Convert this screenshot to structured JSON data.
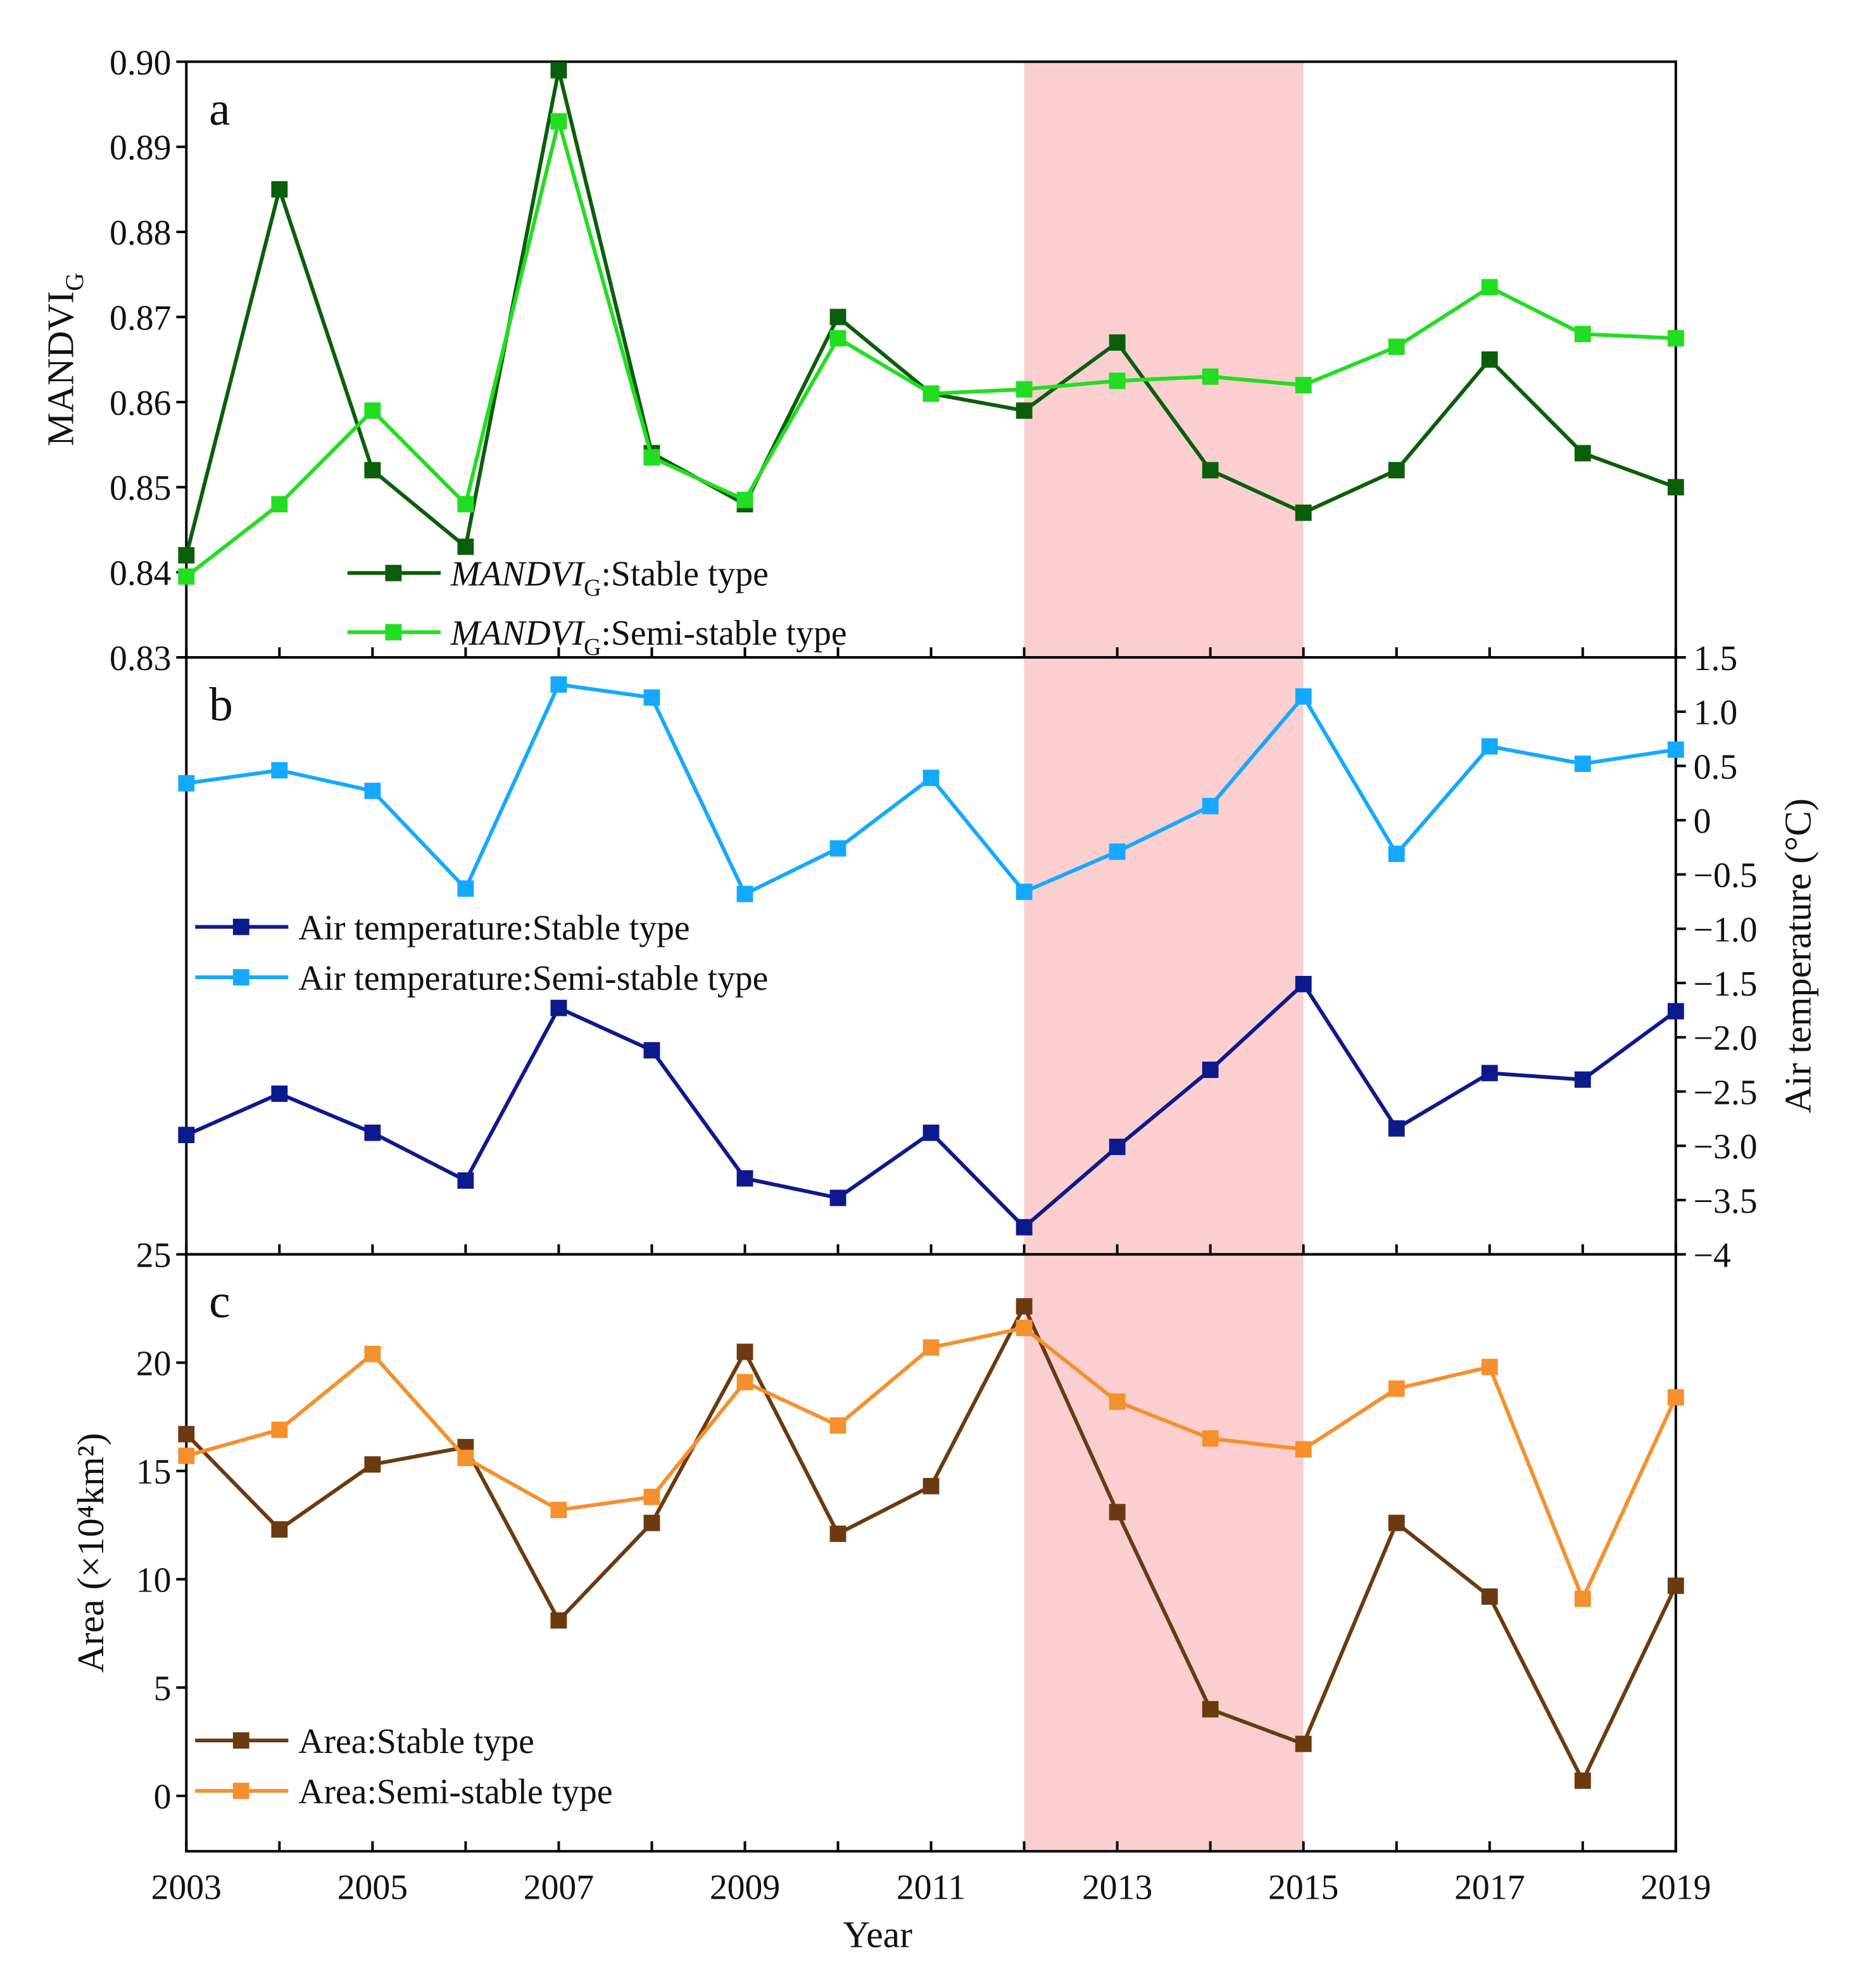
{
  "chart_data": {
    "type": "line",
    "x": [
      2003,
      2004,
      2005,
      2006,
      2007,
      2008,
      2009,
      2010,
      2011,
      2012,
      2013,
      2014,
      2015,
      2016,
      2017,
      2018,
      2019
    ],
    "xlabel": "Year",
    "xticks": [
      "2003",
      "2005",
      "2007",
      "2009",
      "2011",
      "2013",
      "2015",
      "2017",
      "2019"
    ],
    "xlim": [
      2003,
      2019
    ],
    "highlight_range": [
      2012,
      2015
    ],
    "highlight_color": "#fbcfcf",
    "panels": [
      {
        "label": "a",
        "ylabel_main": "MANDVI",
        "ylabel_sub": "G",
        "ylabel_suffix": "",
        "axis_side": "left",
        "ylim": [
          0.83,
          0.9
        ],
        "yticks": [
          "0.83",
          "0.84",
          "0.85",
          "0.86",
          "0.87",
          "0.88",
          "0.89",
          "0.90"
        ],
        "legend_position": "bottom-left",
        "series": [
          {
            "legend_main": "MANDVI",
            "legend_sub": "G",
            "legend_suffix": ":Stable type",
            "italic": true,
            "color": "#0b5e0b",
            "values": [
              0.842,
              0.885,
              0.852,
              0.843,
              0.899,
              0.854,
              0.848,
              0.87,
              0.861,
              0.859,
              0.867,
              0.852,
              0.847,
              0.852,
              0.865,
              0.854,
              0.85
            ]
          },
          {
            "legend_main": "MANDVI",
            "legend_sub": "G",
            "legend_suffix": ":Semi-stable type",
            "italic": true,
            "color": "#22dd22",
            "values": [
              0.8395,
              0.848,
              0.859,
              0.848,
              0.893,
              0.8535,
              0.8485,
              0.8675,
              0.861,
              0.8615,
              0.8625,
              0.863,
              0.862,
              0.8665,
              0.8735,
              0.868,
              0.8675
            ]
          }
        ]
      },
      {
        "label": "b",
        "ylabel_main": "Air temperature (°C)",
        "ylabel_sub": "",
        "ylabel_suffix": "",
        "axis_side": "right",
        "ylim": [
          -4,
          1.5
        ],
        "yticks": [
          "1.5",
          "1.0",
          "0.5",
          "0",
          "−0.5",
          "−1.0",
          "−1.5",
          "−2.0",
          "−2.5",
          "−3.0",
          "−3.5",
          "−4"
        ],
        "legend_position": "center-left",
        "series": [
          {
            "legend_main": "Air temperature:Stable type",
            "legend_sub": "",
            "legend_suffix": "",
            "italic": false,
            "color": "#0d1a8c",
            "values": [
              -2.9,
              -2.52,
              -2.88,
              -3.32,
              -1.73,
              -2.12,
              -3.3,
              -3.48,
              -2.88,
              -3.75,
              -3.01,
              -2.3,
              -1.51,
              -2.84,
              -2.33,
              -2.39,
              -1.76
            ]
          },
          {
            "legend_main": "Air temperature:Semi-stable type",
            "legend_sub": "",
            "legend_suffix": "",
            "italic": false,
            "color": "#14a9ff",
            "values": [
              0.34,
              0.46,
              0.27,
              -0.63,
              1.25,
              1.13,
              -0.68,
              -0.26,
              0.39,
              -0.66,
              -0.29,
              0.13,
              1.14,
              -0.31,
              0.68,
              0.52,
              0.65
            ]
          }
        ]
      },
      {
        "label": "c",
        "ylabel_main": "Area (×10⁴km²)",
        "ylabel_sub": "",
        "ylabel_suffix": "",
        "axis_side": "left",
        "ylim": [
          -2.6,
          25
        ],
        "yticks": [
          "0",
          "5",
          "10",
          "15",
          "20",
          "25"
        ],
        "legend_position": "bottom-left",
        "series": [
          {
            "legend_main": "Area:Stable type",
            "legend_sub": "",
            "legend_suffix": "",
            "italic": false,
            "color": "#6b3a10",
            "values": [
              16.7,
              12.3,
              15.3,
              16.1,
              8.1,
              12.6,
              20.5,
              12.1,
              14.3,
              22.6,
              13.1,
              4.0,
              2.4,
              12.6,
              9.2,
              0.7,
              9.7
            ]
          },
          {
            "legend_main": "Area:Semi-stable type",
            "legend_sub": "",
            "legend_suffix": "",
            "italic": false,
            "color": "#f5902e",
            "values": [
              15.7,
              16.9,
              20.4,
              15.6,
              13.2,
              13.8,
              19.1,
              17.1,
              20.7,
              21.6,
              18.2,
              16.5,
              16.0,
              18.8,
              19.8,
              9.1,
              18.4
            ]
          }
        ]
      }
    ]
  }
}
